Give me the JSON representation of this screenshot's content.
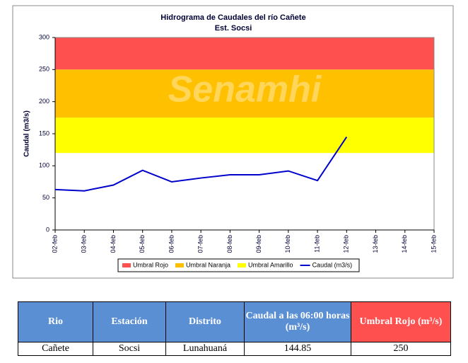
{
  "chart_data": {
    "type": "line",
    "title": "Hidrograma de Caudales del río Cañete",
    "subtitle": "Est. Socsi",
    "watermark": "Senamhi",
    "y_label": "Caudal (m3/s)",
    "categories": [
      "02-feb",
      "03-feb",
      "04-feb",
      "05-feb",
      "06-feb",
      "07-feb",
      "08-feb",
      "09-feb",
      "10-feb",
      "11-feb",
      "12-feb",
      "13-feb",
      "14-feb",
      "15-feb"
    ],
    "thresholds": [
      {
        "name": "Umbral Rojo",
        "color": "#ff5050",
        "value": 250
      },
      {
        "name": "Umbral Naranja",
        "color": "#ffc000",
        "value": 175
      },
      {
        "name": "Umbral Amarillo",
        "color": "#ffff00",
        "value": 120
      }
    ],
    "series": [
      {
        "name": "Caudal (m3/s)",
        "color": "#0000cc",
        "values": [
          63,
          61,
          70,
          93,
          75,
          81,
          86,
          86,
          92,
          77,
          145,
          null,
          null,
          null
        ]
      }
    ],
    "ylim": [
      0,
      300
    ],
    "yticks": [
      0,
      50,
      100,
      150,
      200,
      250,
      300
    ],
    "legend": "bottom"
  },
  "table": {
    "header": [
      "Rio",
      "Estación",
      "Distrito",
      "Caudal a las 06:00 horas (m³/s)",
      "Umbral Rojo (m³/s)"
    ],
    "rows": [
      [
        "Cañete",
        "Socsi",
        "Lunahuaná",
        "144.85",
        "250"
      ]
    ]
  }
}
